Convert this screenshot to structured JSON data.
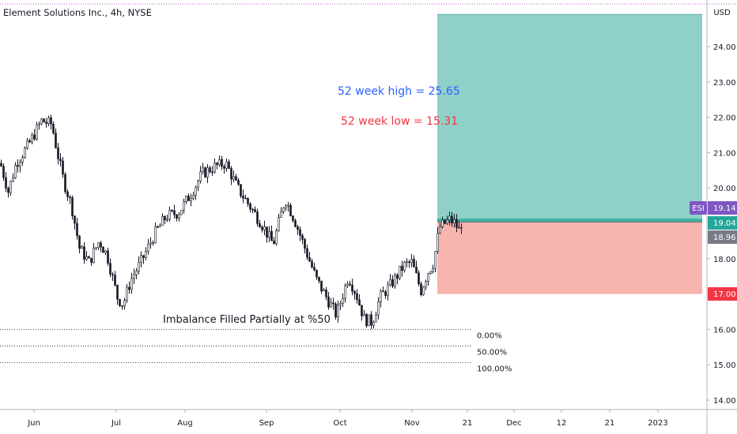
{
  "header": {
    "symbol_title": "Element Solutions Inc., 4h, NYSE"
  },
  "currency": "USD",
  "colors": {
    "up": "#ffffff",
    "down": "#131722",
    "wick": "#131722",
    "profit_zone": "#8fd1c8",
    "loss_zone": "#f8b4ae",
    "entry_band": "#3fb6a4",
    "high_text": "#2962ff",
    "low_text": "#f23645",
    "symbol_badge": "#7e57c2",
    "entry_badge": "#26a69a",
    "price_badge": "#787b86",
    "stop_badge": "#f23645",
    "dotted_line": "#131722"
  },
  "annotations": {
    "high": "52 week high = 25.65",
    "low": "52 week low = 15.31",
    "imbalance": "Imbalance Filled Partially at %50"
  },
  "fibonacci": {
    "levels": [
      {
        "label": "0.00%",
        "price": 16.0
      },
      {
        "label": "50.00%",
        "price": 15.53
      },
      {
        "label": "100.00%",
        "price": 15.06
      }
    ]
  },
  "position": {
    "target": 24.91,
    "entry": 19.04,
    "entry_band_top": 19.14,
    "stop": 17.0
  },
  "price_labels": {
    "symbol": "ESI",
    "last": "19.14",
    "entry": "19.04",
    "current": "18.96",
    "stop": "17.00"
  },
  "chart_data": {
    "type": "candlestick",
    "title": "Element Solutions Inc., 4h, NYSE",
    "ylabel": "USD",
    "ylim": [
      13.6,
      25.05
    ],
    "y_ticks": [
      "14.00",
      "15.00",
      "16.00",
      "17.00",
      "18.00",
      "19.00",
      "20.00",
      "21.00",
      "22.00",
      "23.00",
      "24.00"
    ],
    "x_ticks": [
      "Jun",
      "Jul",
      "Aug",
      "Sep",
      "Oct",
      "Nov",
      "21",
      "Dec",
      "12",
      "21",
      "2023"
    ],
    "x_positions": [
      43,
      147,
      234,
      337,
      430,
      521,
      591,
      650,
      710,
      771,
      832
    ],
    "close_anchors": [
      [
        0,
        20.7
      ],
      [
        10,
        19.9
      ],
      [
        20,
        20.7
      ],
      [
        35,
        21.2
      ],
      [
        52,
        21.9
      ],
      [
        65,
        21.8
      ],
      [
        72,
        21.0
      ],
      [
        80,
        20.2
      ],
      [
        90,
        19.5
      ],
      [
        100,
        18.3
      ],
      [
        112,
        17.9
      ],
      [
        125,
        18.5
      ],
      [
        135,
        18.1
      ],
      [
        148,
        16.9
      ],
      [
        155,
        16.7
      ],
      [
        165,
        17.4
      ],
      [
        180,
        18.0
      ],
      [
        195,
        18.7
      ],
      [
        210,
        19.2
      ],
      [
        225,
        19.3
      ],
      [
        240,
        19.8
      ],
      [
        255,
        20.4
      ],
      [
        270,
        20.6
      ],
      [
        285,
        20.7
      ],
      [
        300,
        20.0
      ],
      [
        315,
        19.5
      ],
      [
        330,
        19.0
      ],
      [
        345,
        18.4
      ],
      [
        360,
        19.7
      ],
      [
        372,
        19.1
      ],
      [
        385,
        18.3
      ],
      [
        400,
        17.4
      ],
      [
        415,
        16.8
      ],
      [
        425,
        16.4
      ],
      [
        440,
        17.5
      ],
      [
        450,
        17.0
      ],
      [
        460,
        16.3
      ],
      [
        470,
        16.2
      ],
      [
        480,
        16.9
      ],
      [
        495,
        17.3
      ],
      [
        510,
        17.8
      ],
      [
        520,
        17.9
      ],
      [
        532,
        17.1
      ],
      [
        540,
        17.6
      ],
      [
        548,
        17.9
      ],
      [
        552,
        18.5
      ],
      [
        556,
        18.9
      ],
      [
        562,
        19.0
      ],
      [
        568,
        19.1
      ],
      [
        575,
        19.0
      ],
      [
        580,
        18.8
      ],
      [
        584,
        19.1
      ]
    ]
  }
}
